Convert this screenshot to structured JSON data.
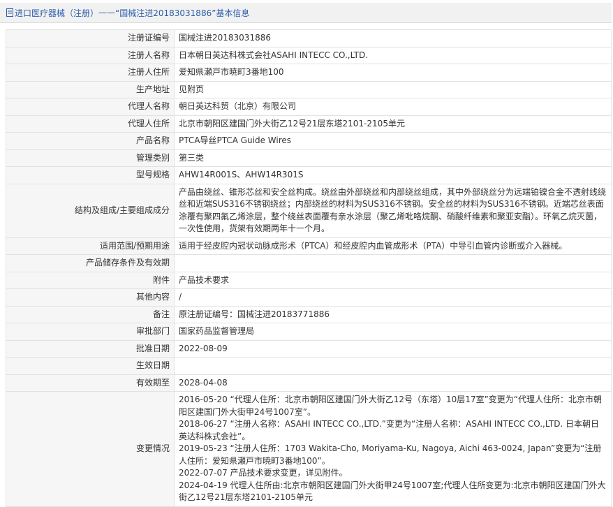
{
  "header": {
    "category": "进口医疗器械（注册）",
    "separator": "——",
    "title": "“国械注进20183031886”基本信息"
  },
  "table": {
    "rows": [
      [
        "注册证编号",
        "国械注进20183031886"
      ],
      [
        "注册人名称",
        "日本朝日英达科株式会社ASAHI INTECC CO.,LTD."
      ],
      [
        "注册人住所",
        "爱知県瀬戸市暁町3番地100"
      ],
      [
        "生产地址",
        "见附页"
      ],
      [
        "代理人名称",
        "朝日英达科贸（北京）有限公司"
      ],
      [
        "代理人住所",
        "北京市朝阳区建国门外大街乙12号21层东塔2101-2105单元"
      ],
      [
        "产品名称",
        "PTCA导丝PTCA Guide Wires"
      ],
      [
        "管理类别",
        "第三类"
      ],
      [
        "型号规格",
        "AHW14R001S、AHW14R301S"
      ],
      [
        "结构及组成/主要组成成分",
        "产品由绕丝、锥形芯丝和安全丝构成。绕丝由外部绕丝和内部绕丝组成，其中外部绕丝分为远端铂镍合金不透射线绕丝和近端SUS316不锈钢绕丝；内部绕丝的材料为SUS316不锈钢。安全丝的材料为SUS316不锈钢。近端芯丝表面涂覆有聚四氟乙烯涂层，整个绕丝表面覆有亲水涂层（聚乙烯吡咯烷酮、硝酸纤维素和聚亚安酯）。环氧乙烷灭菌，一次性使用，货架有效期两年十一个月。"
      ],
      [
        "适用范围/预期用途",
        "适用于经皮腔内冠状动脉成形术（PTCA）和经皮腔内血管成形术（PTA）中导引血管内诊断或介入器械。"
      ],
      [
        "产品储存条件及有效期"
      ],
      [
        "附件",
        "产品技术要求"
      ],
      [
        "其他内容",
        "/"
      ],
      [
        "备注",
        "原注册证编号：国械注进20183771886"
      ],
      [
        "审批部门",
        "国家药品监督管理局"
      ],
      [
        "批准日期",
        "2022-08-09"
      ],
      [
        "生效日期"
      ],
      [
        "有效期至",
        "2028-04-08"
      ],
      [
        "变更情况",
        [
          "2016-05-20 “代理人住所：北京市朝阳区建国门外大街乙12号（东塔）10层17室”变更为“代理人住所：北京市朝阳区建国门外大街甲24号1007室”。",
          "2018-06-27 “注册人名称：ASAHI INTECC CO.,LTD.”变更为“注册人名称：ASAHI INTECC CO.,LTD. 日本朝日英达科株式会社”。",
          "2019-05-23 “注册人住所：1703 Wakita-Cho, Moriyama-Ku, Nagoya, Aichi 463-0024, Japan”变更为“注册人住所：爱知県瀬戸市暁町3番地100”。",
          "2022-07-07 产品技术要求变更，详见附件。",
          "2024-04-19 代理人住所由:北京市朝阳区建国门外大街甲24号1007室;代理人住所变更为:北京市朝阳区建国门外大街乙12号21层东塔2101-2105单元"
        ]
      ]
    ]
  }
}
